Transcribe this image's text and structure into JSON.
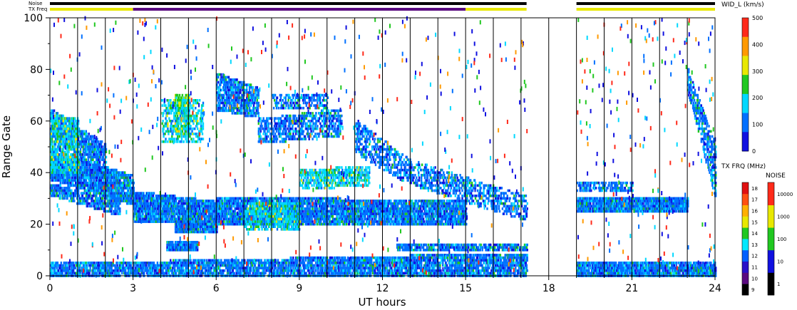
{
  "header": {
    "noise_label": "Noise",
    "txfreq_label": "TX Freq"
  },
  "chart_data": {
    "type": "heatmap",
    "xlabel": "UT hours",
    "ylabel": "Range Gate",
    "x_ticks": [
      "0",
      "3",
      "6",
      "9",
      "12",
      "15",
      "18",
      "21",
      "24"
    ],
    "y_ticks": [
      "0",
      "20",
      "40",
      "60",
      "80",
      "100"
    ],
    "xlim": [
      0,
      24
    ],
    "ylim": [
      0,
      100
    ],
    "data_gaps_hours": [
      [
        17.2,
        19.0
      ]
    ],
    "vertical_gridlines_hours": [
      1,
      2,
      3,
      4,
      5,
      6,
      7,
      8,
      9,
      10,
      11,
      12,
      13,
      14,
      15,
      16,
      17,
      18,
      19,
      20,
      21,
      22,
      23
    ],
    "status_bars": {
      "noise": [
        {
          "from": 0,
          "to": 17.2,
          "level": "black"
        },
        {
          "from": 19.0,
          "to": 24,
          "level": "black"
        }
      ],
      "tx_freq": [
        {
          "from": 0,
          "to": 3,
          "mhz": "15"
        },
        {
          "from": 3,
          "to": 15,
          "mhz": "10"
        },
        {
          "from": 15,
          "to": 17.2,
          "mhz": "15"
        },
        {
          "from": 19.0,
          "to": 24,
          "mhz": "15"
        }
      ]
    },
    "bands": [
      {
        "t0": 0.0,
        "t1": 3.0,
        "g0": 38,
        "g1": 48,
        "g0b": 28,
        "g1b": 38,
        "density": 0.8,
        "level": 1
      },
      {
        "t0": 0.0,
        "t1": 2.0,
        "g0": 55,
        "g1": 64,
        "g0b": 40,
        "g1b": 50,
        "density": 0.6,
        "level": 1
      },
      {
        "t0": 0.0,
        "t1": 1.0,
        "g0": 40,
        "g1": 62,
        "g0b": 40,
        "g1b": 60,
        "density": 0.5,
        "level": 2
      },
      {
        "t0": 0.0,
        "t1": 2.5,
        "g0": 32,
        "g1": 35,
        "g0b": 24,
        "g1b": 28,
        "density": 0.6,
        "level": 1
      },
      {
        "t0": 3.0,
        "t1": 6.0,
        "g0": 22,
        "g1": 32,
        "g0b": 20,
        "g1b": 28,
        "density": 0.8,
        "level": 1
      },
      {
        "t0": 4.5,
        "t1": 5.0,
        "g0": 55,
        "g1": 70,
        "g0b": 55,
        "g1b": 70,
        "density": 0.5,
        "level": 3
      },
      {
        "t0": 4.0,
        "t1": 5.5,
        "g0": 52,
        "g1": 68,
        "g0b": 52,
        "g1b": 68,
        "density": 0.35,
        "level": 2
      },
      {
        "t0": 4.5,
        "t1": 6.0,
        "g0": 17,
        "g1": 20,
        "g0b": 17,
        "g1b": 20,
        "density": 0.9,
        "level": 1
      },
      {
        "t0": 4.2,
        "t1": 5.3,
        "g0": 10,
        "g1": 13,
        "g0b": 10,
        "g1b": 13,
        "density": 0.9,
        "level": 1
      },
      {
        "t0": 6.0,
        "t1": 7.5,
        "g0": 65,
        "g1": 78,
        "g0b": 62,
        "g1b": 72,
        "density": 0.6,
        "level": 1
      },
      {
        "t0": 6.0,
        "t1": 15.0,
        "g0": 20,
        "g1": 30,
        "g0b": 20,
        "g1b": 28,
        "density": 0.75,
        "level": 1
      },
      {
        "t0": 7.0,
        "t1": 9.0,
        "g0": 18,
        "g1": 28,
        "g0b": 18,
        "g1b": 28,
        "density": 0.5,
        "level": 2
      },
      {
        "t0": 9.0,
        "t1": 11.5,
        "g0": 34,
        "g1": 40,
        "g0b": 36,
        "g1b": 42,
        "density": 0.5,
        "level": 2
      },
      {
        "t0": 7.5,
        "t1": 10.5,
        "g0": 52,
        "g1": 60,
        "g0b": 55,
        "g1b": 64,
        "density": 0.45,
        "level": 1
      },
      {
        "t0": 8.0,
        "t1": 10.0,
        "g0": 65,
        "g1": 70,
        "g0b": 65,
        "g1b": 70,
        "density": 0.4,
        "level": 1
      },
      {
        "t0": 11.0,
        "t1": 13.0,
        "g0": 60,
        "g1": 48,
        "g0b": 44,
        "g1b": 36,
        "density": 0.4,
        "level": 1
      },
      {
        "t0": 13.0,
        "t1": 17.2,
        "g0": 36,
        "g1": 44,
        "g0b": 22,
        "g1b": 30,
        "density": 0.35,
        "level": 1
      },
      {
        "t0": 0.0,
        "t1": 17.2,
        "g0": 0,
        "g1": 4,
        "g0b": 0,
        "g1b": 8,
        "density": 0.65,
        "level": 1
      },
      {
        "t0": 12.5,
        "t1": 17.2,
        "g0": 10,
        "g1": 12,
        "g0b": 10,
        "g1b": 12,
        "density": 0.6,
        "level": 1
      },
      {
        "t0": 19.0,
        "t1": 24.0,
        "g0": 0,
        "g1": 5,
        "g0b": 0,
        "g1b": 5,
        "density": 0.75,
        "level": 1
      },
      {
        "t0": 19.0,
        "t1": 23.0,
        "g0": 25,
        "g1": 29,
        "g0b": 26,
        "g1b": 30,
        "density": 0.85,
        "level": 1
      },
      {
        "t0": 19.0,
        "t1": 21.0,
        "g0": 33,
        "g1": 36,
        "g0b": 33,
        "g1b": 36,
        "density": 0.5,
        "level": 1
      },
      {
        "t0": 23.0,
        "t1": 24.0,
        "g0": 72,
        "g1": 80,
        "g0b": 30,
        "g1b": 50,
        "density": 0.45,
        "level": 1
      }
    ],
    "legend_wid": {
      "title": "WID_L (km/s)",
      "ticks": [
        "0",
        "100",
        "200",
        "300",
        "400",
        "500"
      ],
      "colors": [
        "#1010e0",
        "#0070ff",
        "#00d8ff",
        "#20c820",
        "#e8e800",
        "#ff9a00",
        "#ff2a1a"
      ]
    },
    "legend_txfrq": {
      "title": "TX FRQ (MHz)",
      "ticks": [
        "9",
        "10",
        "11",
        "12",
        "13",
        "14",
        "15",
        "16",
        "17",
        "18"
      ],
      "colors": [
        "#000000",
        "#5a0a80",
        "#2a10c8",
        "#0060ff",
        "#00e8ff",
        "#20c820",
        "#e8e800",
        "#ffb000",
        "#ff5010",
        "#e01010"
      ]
    },
    "legend_noise": {
      "title": "NOISE",
      "ticks": [
        "1",
        "10",
        "100",
        "1000",
        "10000"
      ],
      "colors": [
        "#000000",
        "#1010e0",
        "#20c820",
        "#e8e800",
        "#ff2a1a"
      ]
    }
  }
}
